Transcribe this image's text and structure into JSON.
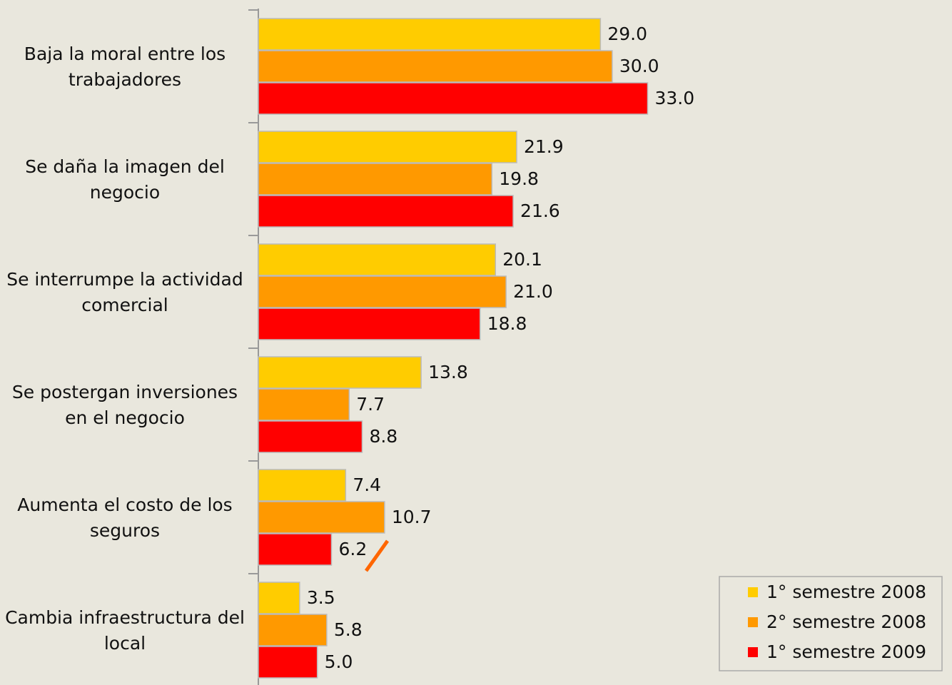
{
  "chart_data": {
    "type": "hbar",
    "categories": [
      "Baja la moral entre los trabajadores",
      "Se daña la imagen del negocio",
      "Se interrumpe la actividad comercial",
      "Se postergan inversiones en el negocio",
      "Aumenta el costo de los seguros",
      "Cambia infraestructura del local"
    ],
    "series": [
      {
        "name": "1° semestre 2008",
        "color": "#FFCC00",
        "values": [
          29,
          21.9,
          20.1,
          13.8,
          7.4,
          3.5
        ],
        "value_labels": [
          "29.0",
          "21.9",
          "20.1",
          "13.8",
          "7.4",
          "3.5"
        ]
      },
      {
        "name": "2° semestre 2008",
        "color": "#FF9900",
        "values": [
          30,
          19.8,
          21,
          7.7,
          10.7,
          5.8
        ],
        "value_labels": [
          "30.0",
          "19.8",
          "21.0",
          "7.7",
          "10.7",
          "5.8"
        ]
      },
      {
        "name": "1° semestre 2009",
        "color": "#FF0000",
        "values": [
          33,
          21.6,
          18.8,
          8.8,
          6.2,
          5
        ],
        "value_labels": [
          "33.0",
          "21.6",
          "18.8",
          "8.8",
          "6.2",
          "5.0"
        ]
      }
    ],
    "legend": "bottom-right"
  }
}
